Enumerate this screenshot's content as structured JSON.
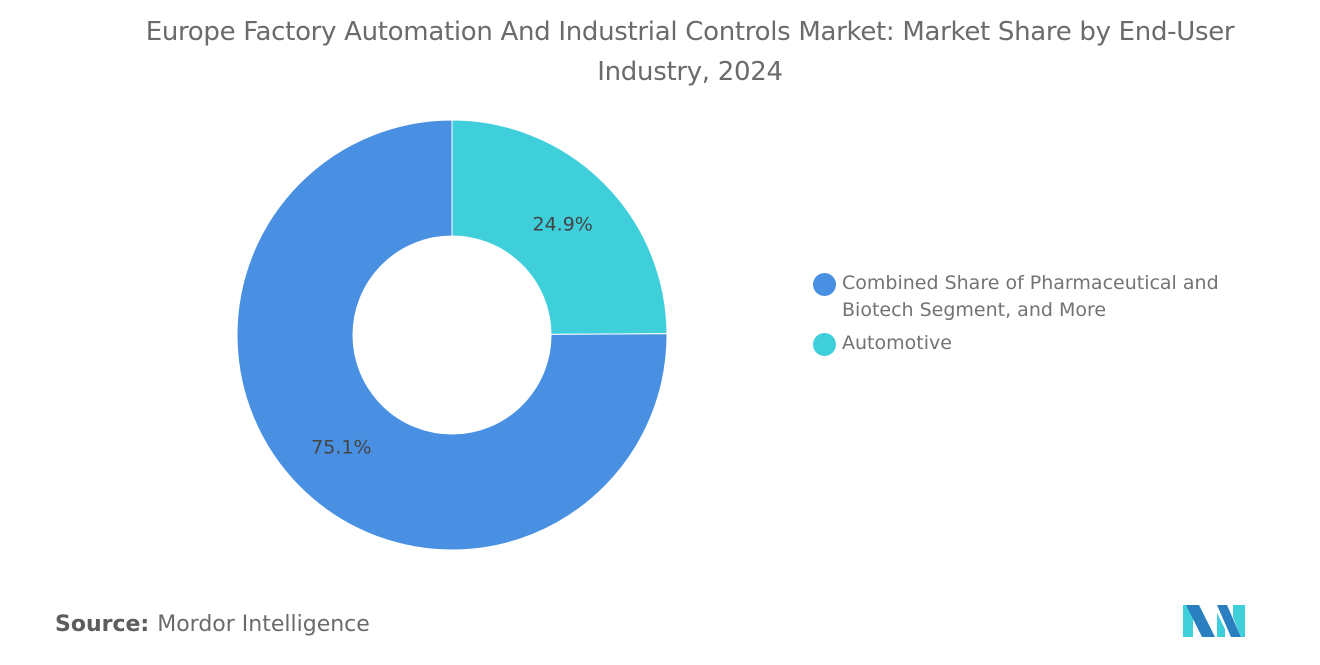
{
  "chart_data": {
    "type": "pie",
    "donut": true,
    "title": "Europe Factory Automation And Industrial Controls Market: Market Share by End-User Industry, 2024",
    "slices": [
      {
        "label": "Automotive",
        "value": 24.9,
        "display": "24.9%",
        "color": "#3ecfdb"
      },
      {
        "label": "Combined Share of Pharmaceutical and Biotech Segment, and More",
        "value": 75.1,
        "display": "75.1%",
        "color": "#4a90e2"
      }
    ],
    "legend": {
      "placement": "right",
      "entries": [
        {
          "label": "Combined Share of Pharmaceutical and Biotech Segment, and More",
          "color": "#4a90e2"
        },
        {
          "label": "Automotive",
          "color": "#3ecfdb"
        }
      ]
    }
  },
  "source": {
    "label": "Source:",
    "value": "Mordor Intelligence"
  },
  "logo": {
    "text": "Mordor Intelligence"
  }
}
